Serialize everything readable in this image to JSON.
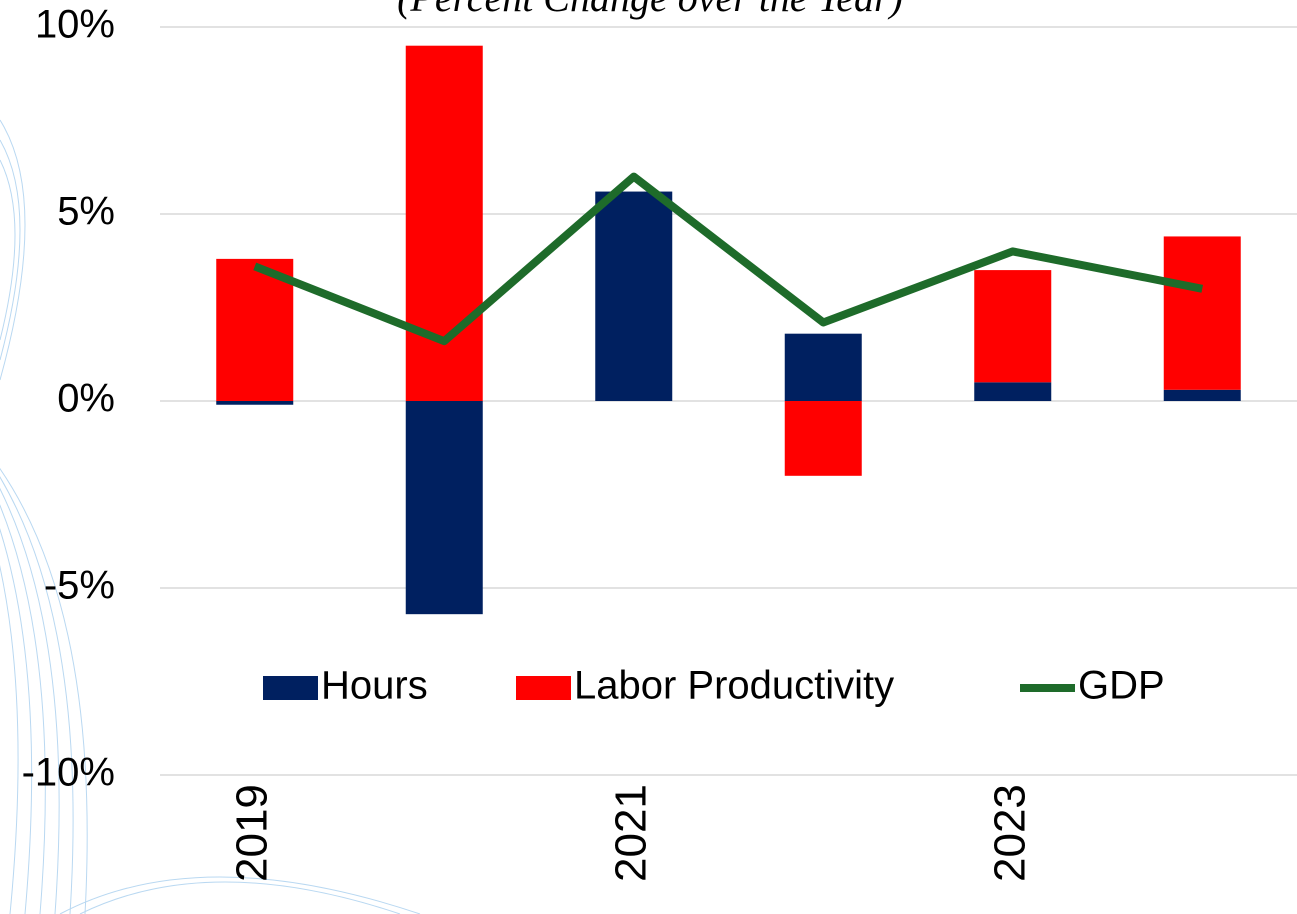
{
  "chart_data": {
    "type": "bar",
    "subtitle": "(Percent Change over the Year)",
    "categories": [
      "2019",
      null,
      "2021",
      null,
      "2023",
      null
    ],
    "stacked": true,
    "series": [
      {
        "name": "Hours",
        "type": "bar",
        "color": "#002060",
        "values": [
          -0.1,
          -5.7,
          5.6,
          1.8,
          0.5,
          0.3
        ]
      },
      {
        "name": "Labor Productivity",
        "type": "bar",
        "color": "#ff0000",
        "values": [
          3.8,
          9.5,
          0,
          -2.0,
          3.0,
          4.1
        ]
      },
      {
        "name": "GDP",
        "type": "line",
        "color": "#1e6b2a",
        "values": [
          3.6,
          1.6,
          6.0,
          2.1,
          4.0,
          3.0
        ]
      }
    ],
    "ylim": [
      -10,
      10
    ],
    "yticks": [
      {
        "value": -10,
        "label": "-10%"
      },
      {
        "value": -5,
        "label": "-5%"
      },
      {
        "value": 0,
        "label": "0%"
      },
      {
        "value": 5,
        "label": "5%"
      },
      {
        "value": 10,
        "label": "10%"
      }
    ],
    "grid": true,
    "legend": "inside-bottom"
  }
}
